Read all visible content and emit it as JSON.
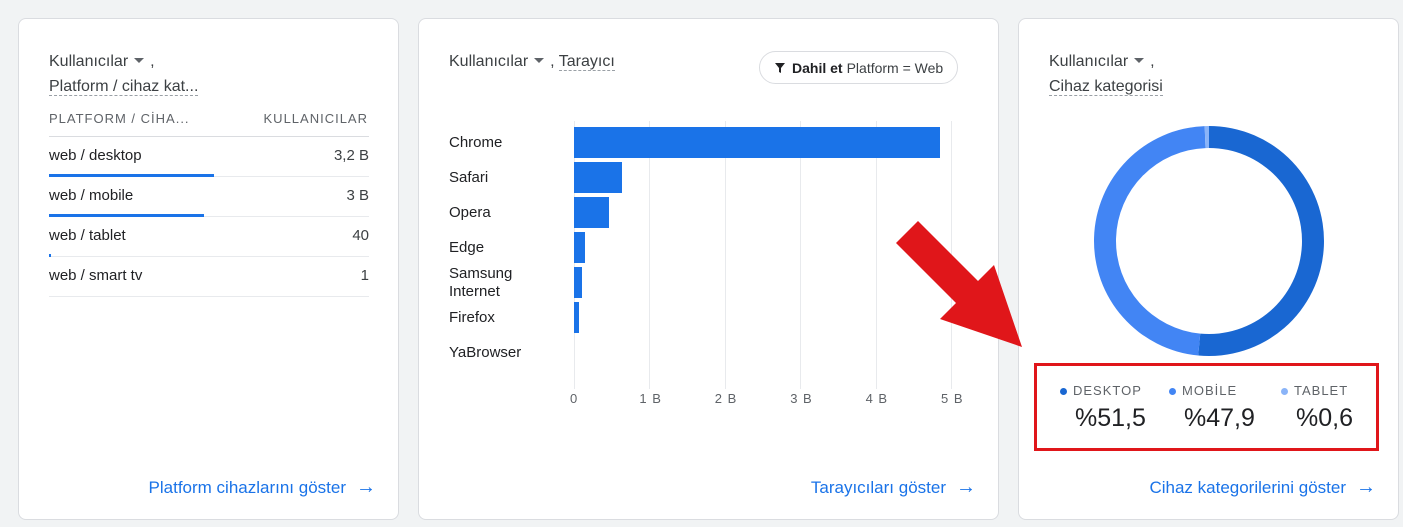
{
  "card1": {
    "metric": "Kullanıcılar",
    "comma": ",",
    "dimension": "Platform / cihaz kat...",
    "col1": "PLATFORM / CİHA...",
    "col2": "KULLANICILAR",
    "rows": [
      {
        "label": "web / desktop",
        "value": "3,2 B",
        "share": 1.0
      },
      {
        "label": "web / mobile",
        "value": "3 B",
        "share": 0.94
      },
      {
        "label": "web / tablet",
        "value": "40",
        "share": 0.0
      },
      {
        "label": "web / smart tv",
        "value": "1",
        "share": 0.0
      }
    ],
    "link": "Platform cihazlarını göster"
  },
  "card2": {
    "metric": "Kullanıcılar",
    "comma": ",",
    "dimension": "Tarayıcı",
    "filter_bold": "Dahil et",
    "filter_text": "Platform = Web",
    "link": "Tarayıcıları göster"
  },
  "card3": {
    "metric": "Kullanıcılar",
    "comma": ",",
    "dimension": "Cihaz kategorisi",
    "legend": [
      {
        "name": "DESKTOP",
        "value": "%51,5",
        "color": "#1967d2"
      },
      {
        "name": "MOBİLE",
        "value": "%47,9",
        "color": "#4285f4"
      },
      {
        "name": "TABLET",
        "value": "%0,6",
        "color": "#8ab4f8"
      }
    ],
    "link": "Cihaz kategorilerini göster"
  },
  "chart_data": [
    {
      "type": "bar",
      "orientation": "horizontal",
      "categories": [
        "Chrome",
        "Safari",
        "Opera",
        "Edge",
        "Samsung Internet",
        "Firefox",
        "YaBrowser"
      ],
      "values": [
        4.85,
        0.63,
        0.46,
        0.15,
        0.11,
        0.07,
        0.0
      ],
      "xticks": [
        "0",
        "1 B",
        "2 B",
        "3 B",
        "4 B",
        "5 B"
      ],
      "xlim": [
        0,
        5
      ],
      "bar_color": "#1a73e8",
      "grid": true
    },
    {
      "type": "pie",
      "donut": true,
      "categories": [
        "DESKTOP",
        "MOBİLE",
        "TABLET"
      ],
      "values": [
        51.5,
        47.9,
        0.6
      ],
      "colors": [
        "#1967d2",
        "#4285f4",
        "#8ab4f8"
      ]
    }
  ],
  "annotation": {
    "arrow_color": "#e0161a",
    "box_color": "#e0161a"
  }
}
